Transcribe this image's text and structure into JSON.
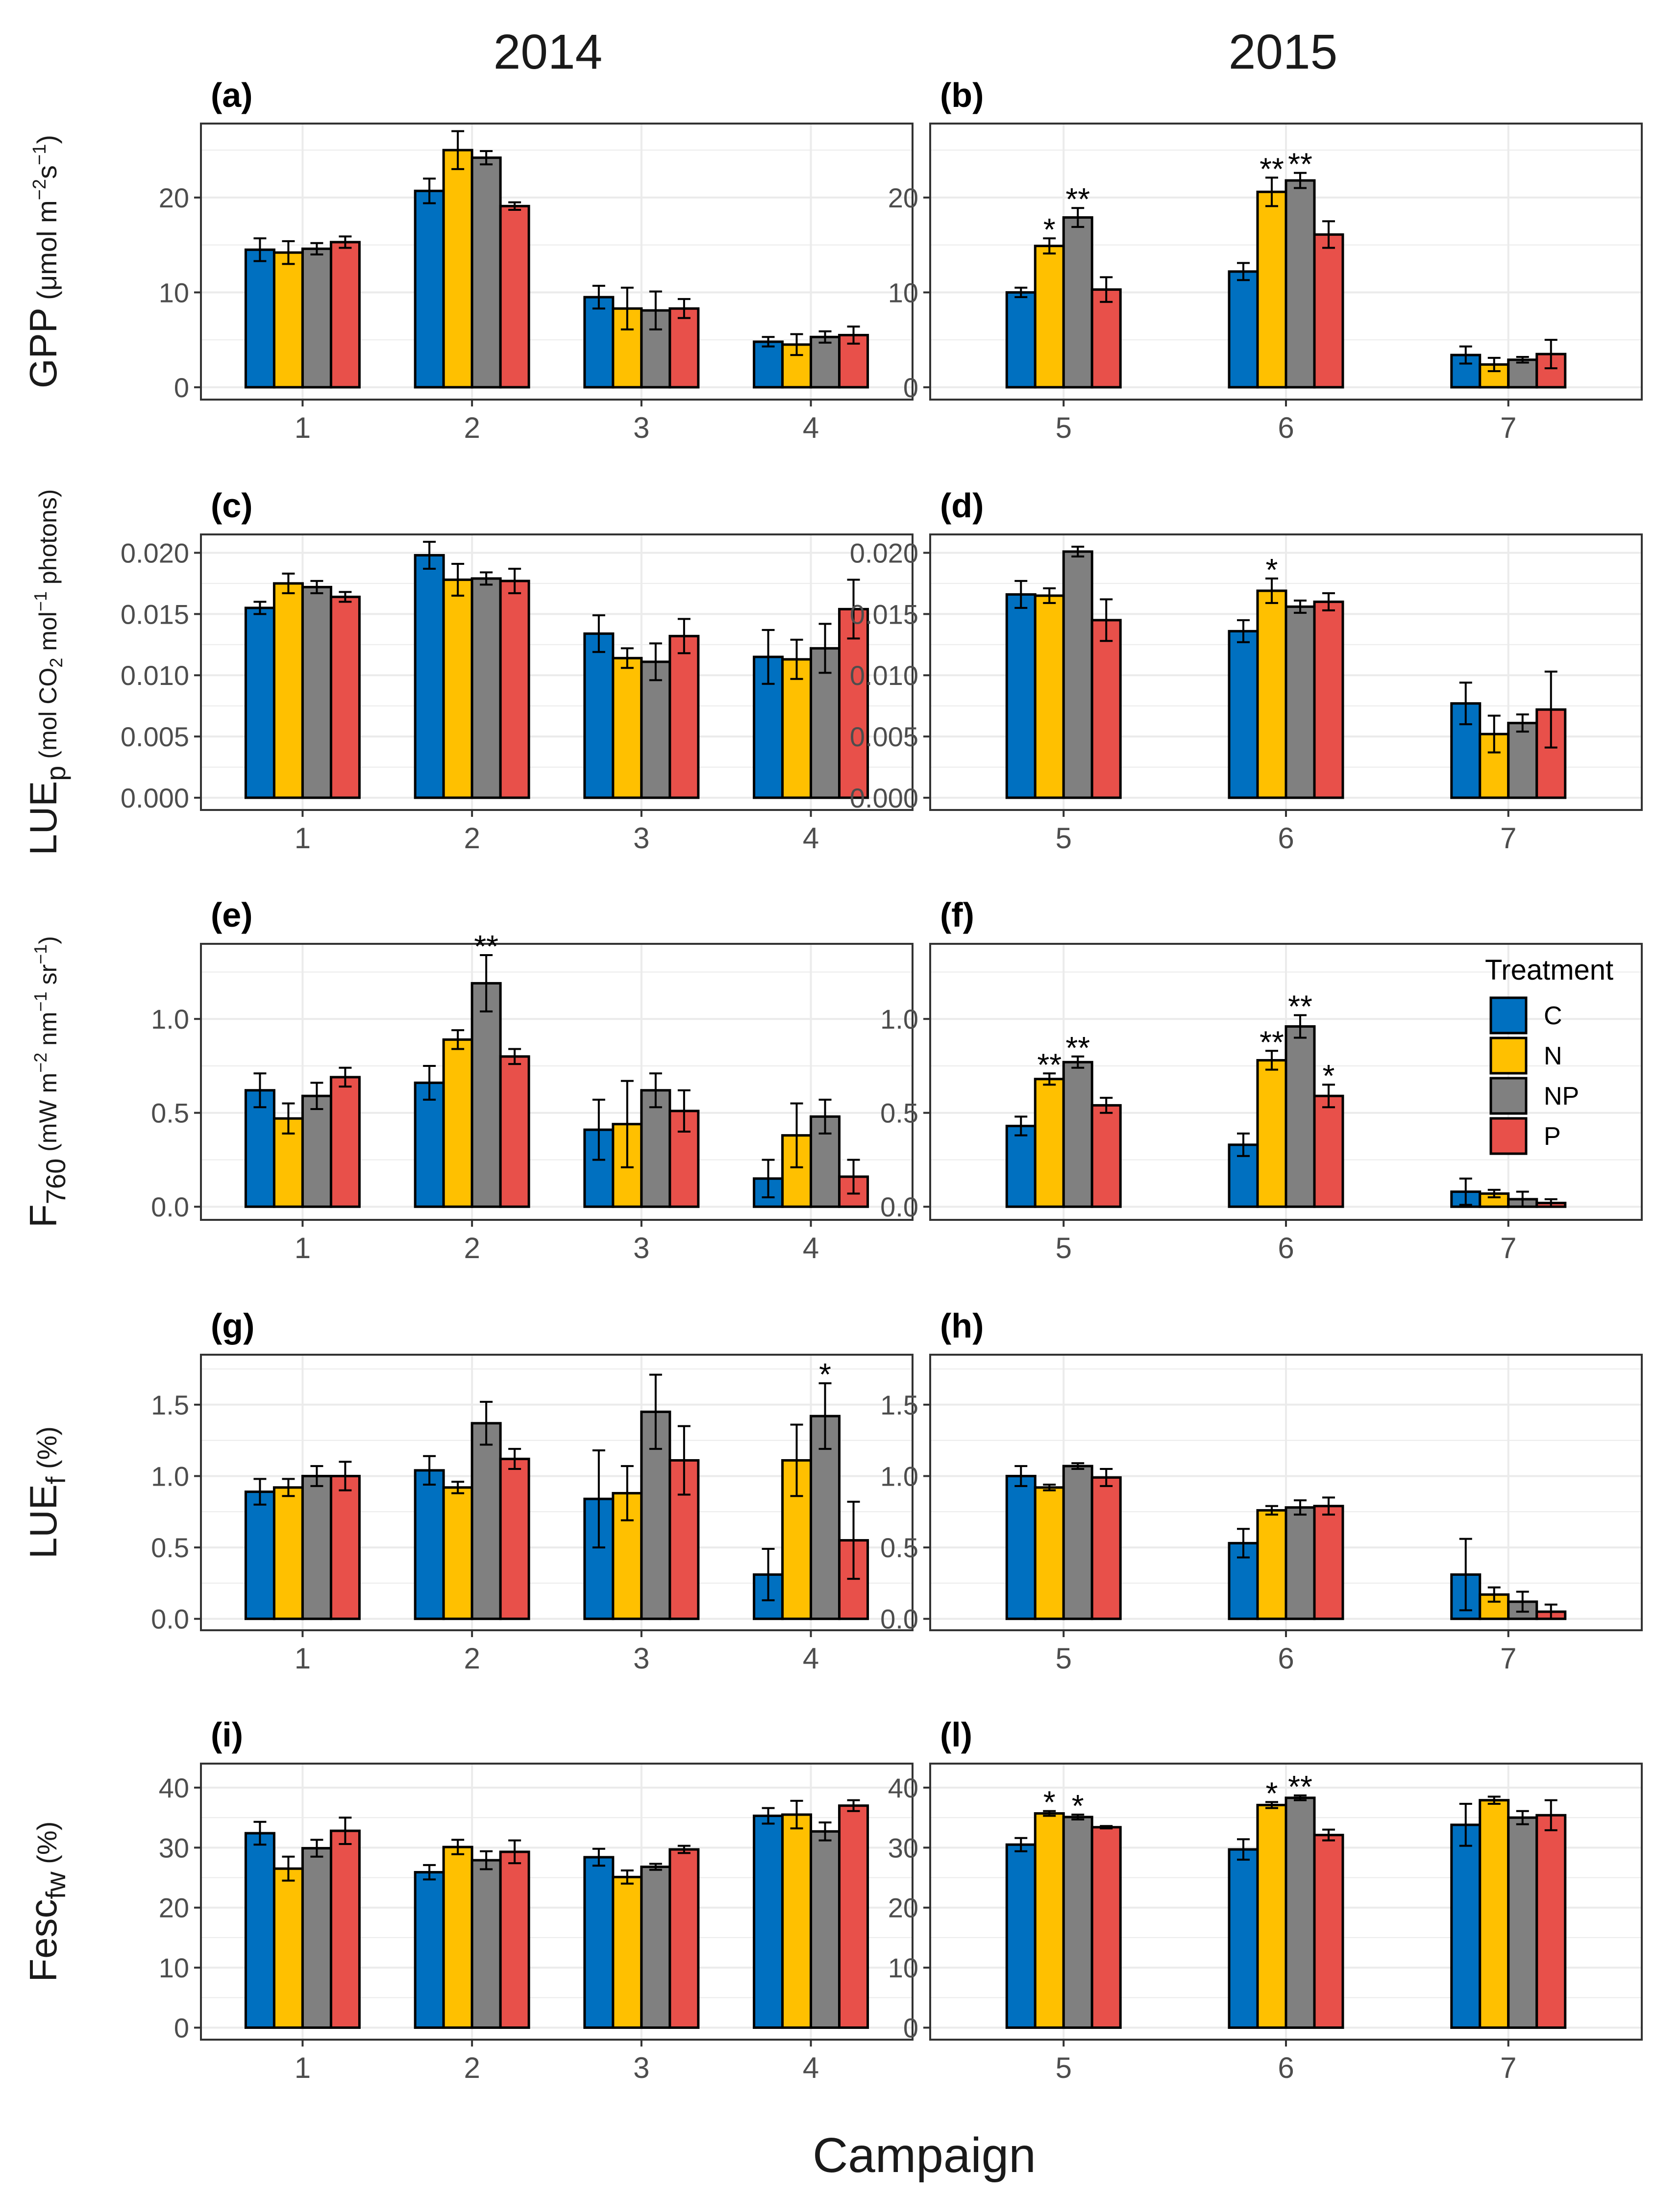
{
  "figure": {
    "column_titles": [
      "2014",
      "2015"
    ],
    "xlabel": "Campaign",
    "legend": {
      "title": "Treatment",
      "entries": [
        "C",
        "N",
        "NP",
        "P"
      ],
      "placement": "inside top-right of panel (f)"
    },
    "colors": {
      "C": "#0070C0",
      "N": "#FFC000",
      "NP": "#808080",
      "P": "#E8504A",
      "grid": "#EBEBEB",
      "frame": "#333333",
      "tick_text": "#4D4D4D"
    }
  },
  "rows": [
    {
      "ylabel": "GPP (μmol m⁻²s⁻¹)",
      "ylim": [
        -1.3,
        27.8
      ],
      "ticks": [
        0,
        10,
        20
      ],
      "tick_labels": [
        "0",
        "10",
        "20"
      ]
    },
    {
      "ylabel": "LUEp (mol CO₂ mol⁻¹ photons)",
      "ylim": [
        -0.001,
        0.0215
      ],
      "ticks": [
        0,
        0.005,
        0.01,
        0.015,
        0.02
      ],
      "tick_labels": [
        "0.000",
        "0.005",
        "0.010",
        "0.015",
        "0.020"
      ]
    },
    {
      "ylabel": "F760 (mW m⁻² nm⁻¹ sr⁻¹)",
      "ylim": [
        -0.07,
        1.4
      ],
      "ticks": [
        0,
        0.5,
        1.0
      ],
      "tick_labels": [
        "0.0",
        "0.5",
        "1.0"
      ]
    },
    {
      "ylabel": "LUEf (%)",
      "ylim": [
        -0.08,
        1.85
      ],
      "ticks": [
        0,
        0.5,
        1.0,
        1.5
      ],
      "tick_labels": [
        "0.0",
        "0.5",
        "1.0",
        "1.5"
      ]
    },
    {
      "ylabel": "Fescfw (%)",
      "ylim": [
        -2,
        44
      ],
      "ticks": [
        0,
        10,
        20,
        30,
        40
      ],
      "tick_labels": [
        "0",
        "10",
        "20",
        "30",
        "40"
      ]
    }
  ],
  "chart_data": [
    {
      "type": "bar",
      "panel": "(a)",
      "categories": [
        "1",
        "2",
        "3",
        "4"
      ],
      "series": [
        {
          "name": "C",
          "values": [
            14.5,
            20.7,
            9.5,
            4.8
          ],
          "err": [
            1.2,
            1.3,
            1.2,
            0.5
          ]
        },
        {
          "name": "N",
          "values": [
            14.2,
            25.0,
            8.3,
            4.5
          ],
          "err": [
            1.2,
            2.0,
            2.2,
            1.1
          ]
        },
        {
          "name": "NP",
          "values": [
            14.6,
            24.2,
            8.1,
            5.3
          ],
          "err": [
            0.6,
            0.7,
            2.0,
            0.6
          ]
        },
        {
          "name": "P",
          "values": [
            15.3,
            19.1,
            8.3,
            5.5
          ],
          "err": [
            0.6,
            0.4,
            1.0,
            0.9
          ]
        }
      ],
      "annotations": []
    },
    {
      "type": "bar",
      "panel": "(b)",
      "categories": [
        "5",
        "6",
        "7"
      ],
      "series": [
        {
          "name": "C",
          "values": [
            10.0,
            12.2,
            3.4
          ],
          "err": [
            0.5,
            0.9,
            0.9
          ]
        },
        {
          "name": "N",
          "values": [
            14.9,
            20.6,
            2.4
          ],
          "err": [
            0.8,
            1.5,
            0.7
          ]
        },
        {
          "name": "NP",
          "values": [
            17.9,
            21.8,
            2.9
          ],
          "err": [
            1.0,
            0.8,
            0.3
          ]
        },
        {
          "name": "P",
          "values": [
            10.3,
            16.1,
            3.5
          ],
          "err": [
            1.3,
            1.4,
            1.5
          ]
        }
      ],
      "annotations": [
        {
          "category": "5",
          "series": "N",
          "label": "*"
        },
        {
          "category": "5",
          "series": "NP",
          "label": "**"
        },
        {
          "category": "6",
          "series": "N",
          "label": "**"
        },
        {
          "category": "6",
          "series": "NP",
          "label": "**"
        }
      ]
    },
    {
      "type": "bar",
      "panel": "(c)",
      "categories": [
        "1",
        "2",
        "3",
        "4"
      ],
      "series": [
        {
          "name": "C",
          "values": [
            0.0155,
            0.0198,
            0.0134,
            0.0115
          ],
          "err": [
            0.0005,
            0.0011,
            0.0015,
            0.0022
          ]
        },
        {
          "name": "N",
          "values": [
            0.0175,
            0.0178,
            0.0114,
            0.0113
          ],
          "err": [
            0.0008,
            0.0013,
            0.0008,
            0.0016
          ]
        },
        {
          "name": "NP",
          "values": [
            0.0172,
            0.0179,
            0.0111,
            0.0122
          ],
          "err": [
            0.0005,
            0.0005,
            0.0015,
            0.002
          ]
        },
        {
          "name": "P",
          "values": [
            0.0164,
            0.0177,
            0.0132,
            0.0154
          ],
          "err": [
            0.0004,
            0.001,
            0.0014,
            0.0024
          ]
        }
      ],
      "annotations": []
    },
    {
      "type": "bar",
      "panel": "(d)",
      "categories": [
        "5",
        "6",
        "7"
      ],
      "series": [
        {
          "name": "C",
          "values": [
            0.0166,
            0.0136,
            0.0077
          ],
          "err": [
            0.0011,
            0.0009,
            0.0017
          ]
        },
        {
          "name": "N",
          "values": [
            0.0165,
            0.0169,
            0.0052
          ],
          "err": [
            0.0006,
            0.001,
            0.0015
          ]
        },
        {
          "name": "NP",
          "values": [
            0.0201,
            0.0156,
            0.0061
          ],
          "err": [
            0.0004,
            0.0005,
            0.0007
          ]
        },
        {
          "name": "P",
          "values": [
            0.0145,
            0.016,
            0.0072
          ],
          "err": [
            0.0017,
            0.0007,
            0.0031
          ]
        }
      ],
      "annotations": [
        {
          "category": "6",
          "series": "N",
          "label": "*"
        }
      ]
    },
    {
      "type": "bar",
      "panel": "(e)",
      "categories": [
        "1",
        "2",
        "3",
        "4"
      ],
      "series": [
        {
          "name": "C",
          "values": [
            0.62,
            0.66,
            0.41,
            0.15
          ],
          "err": [
            0.09,
            0.09,
            0.16,
            0.1
          ]
        },
        {
          "name": "N",
          "values": [
            0.47,
            0.89,
            0.44,
            0.38
          ],
          "err": [
            0.08,
            0.05,
            0.23,
            0.17
          ]
        },
        {
          "name": "NP",
          "values": [
            0.59,
            1.19,
            0.62,
            0.48
          ],
          "err": [
            0.07,
            0.15,
            0.09,
            0.09
          ]
        },
        {
          "name": "P",
          "values": [
            0.69,
            0.8,
            0.51,
            0.16
          ],
          "err": [
            0.05,
            0.04,
            0.11,
            0.09
          ]
        }
      ],
      "annotations": [
        {
          "category": "2",
          "series": "NP",
          "label": "**"
        }
      ]
    },
    {
      "type": "bar",
      "panel": "(f)",
      "categories": [
        "5",
        "6",
        "7"
      ],
      "series": [
        {
          "name": "C",
          "values": [
            0.43,
            0.33,
            0.08
          ],
          "err": [
            0.05,
            0.06,
            0.07
          ]
        },
        {
          "name": "N",
          "values": [
            0.68,
            0.78,
            0.07
          ],
          "err": [
            0.03,
            0.05,
            0.02
          ]
        },
        {
          "name": "NP",
          "values": [
            0.77,
            0.96,
            0.04
          ],
          "err": [
            0.03,
            0.06,
            0.04
          ]
        },
        {
          "name": "P",
          "values": [
            0.54,
            0.59,
            0.02
          ],
          "err": [
            0.04,
            0.06,
            0.02
          ]
        }
      ],
      "annotations": [
        {
          "category": "5",
          "series": "N",
          "label": "**"
        },
        {
          "category": "5",
          "series": "NP",
          "label": "**"
        },
        {
          "category": "6",
          "series": "N",
          "label": "**"
        },
        {
          "category": "6",
          "series": "NP",
          "label": "**"
        },
        {
          "category": "6",
          "series": "P",
          "label": "*"
        }
      ]
    },
    {
      "type": "bar",
      "panel": "(g)",
      "categories": [
        "1",
        "2",
        "3",
        "4"
      ],
      "series": [
        {
          "name": "C",
          "values": [
            0.89,
            1.04,
            0.84,
            0.31
          ],
          "err": [
            0.09,
            0.1,
            0.34,
            0.18
          ]
        },
        {
          "name": "N",
          "values": [
            0.92,
            0.92,
            0.88,
            1.11
          ],
          "err": [
            0.06,
            0.04,
            0.19,
            0.25
          ]
        },
        {
          "name": "NP",
          "values": [
            1.0,
            1.37,
            1.45,
            1.42
          ],
          "err": [
            0.07,
            0.15,
            0.26,
            0.23
          ]
        },
        {
          "name": "P",
          "values": [
            1.0,
            1.12,
            1.11,
            0.55
          ],
          "err": [
            0.1,
            0.07,
            0.24,
            0.27
          ]
        }
      ],
      "annotations": [
        {
          "category": "4",
          "series": "NP",
          "label": "*"
        }
      ]
    },
    {
      "type": "bar",
      "panel": "(h)",
      "categories": [
        "5",
        "6",
        "7"
      ],
      "series": [
        {
          "name": "C",
          "values": [
            1.0,
            0.53,
            0.31
          ],
          "err": [
            0.07,
            0.1,
            0.25
          ]
        },
        {
          "name": "N",
          "values": [
            0.92,
            0.76,
            0.17
          ],
          "err": [
            0.02,
            0.03,
            0.05
          ]
        },
        {
          "name": "NP",
          "values": [
            1.07,
            0.78,
            0.12
          ],
          "err": [
            0.02,
            0.05,
            0.07
          ]
        },
        {
          "name": "P",
          "values": [
            0.99,
            0.79,
            0.05
          ],
          "err": [
            0.06,
            0.06,
            0.05
          ]
        }
      ],
      "annotations": []
    },
    {
      "type": "bar",
      "panel": "(i)",
      "categories": [
        "1",
        "2",
        "3",
        "4"
      ],
      "series": [
        {
          "name": "C",
          "values": [
            32.4,
            25.9,
            28.4,
            35.3
          ],
          "err": [
            1.9,
            1.2,
            1.4,
            1.3
          ]
        },
        {
          "name": "N",
          "values": [
            26.5,
            30.1,
            25.1,
            35.5
          ],
          "err": [
            2.0,
            1.2,
            1.1,
            2.3
          ]
        },
        {
          "name": "NP",
          "values": [
            29.9,
            27.9,
            26.8,
            32.7
          ],
          "err": [
            1.4,
            1.5,
            0.5,
            1.5
          ]
        },
        {
          "name": "P",
          "values": [
            32.8,
            29.3,
            29.7,
            37.0
          ],
          "err": [
            2.2,
            1.9,
            0.6,
            0.9
          ]
        }
      ],
      "annotations": []
    },
    {
      "type": "bar",
      "panel": "(l)",
      "categories": [
        "5",
        "6",
        "7"
      ],
      "series": [
        {
          "name": "C",
          "values": [
            30.5,
            29.7,
            33.8
          ],
          "err": [
            1.1,
            1.7,
            3.5
          ]
        },
        {
          "name": "N",
          "values": [
            35.7,
            37.1,
            37.9
          ],
          "err": [
            0.4,
            0.5,
            0.6
          ]
        },
        {
          "name": "NP",
          "values": [
            35.1,
            38.3,
            35.0
          ],
          "err": [
            0.4,
            0.4,
            1.1
          ]
        },
        {
          "name": "P",
          "values": [
            33.4,
            32.1,
            35.4
          ],
          "err": [
            0.2,
            0.9,
            2.5
          ]
        }
      ],
      "annotations": [
        {
          "category": "5",
          "series": "N",
          "label": "*"
        },
        {
          "category": "5",
          "series": "NP",
          "label": "*"
        },
        {
          "category": "6",
          "series": "N",
          "label": "*"
        },
        {
          "category": "6",
          "series": "NP",
          "label": "**"
        }
      ]
    }
  ]
}
